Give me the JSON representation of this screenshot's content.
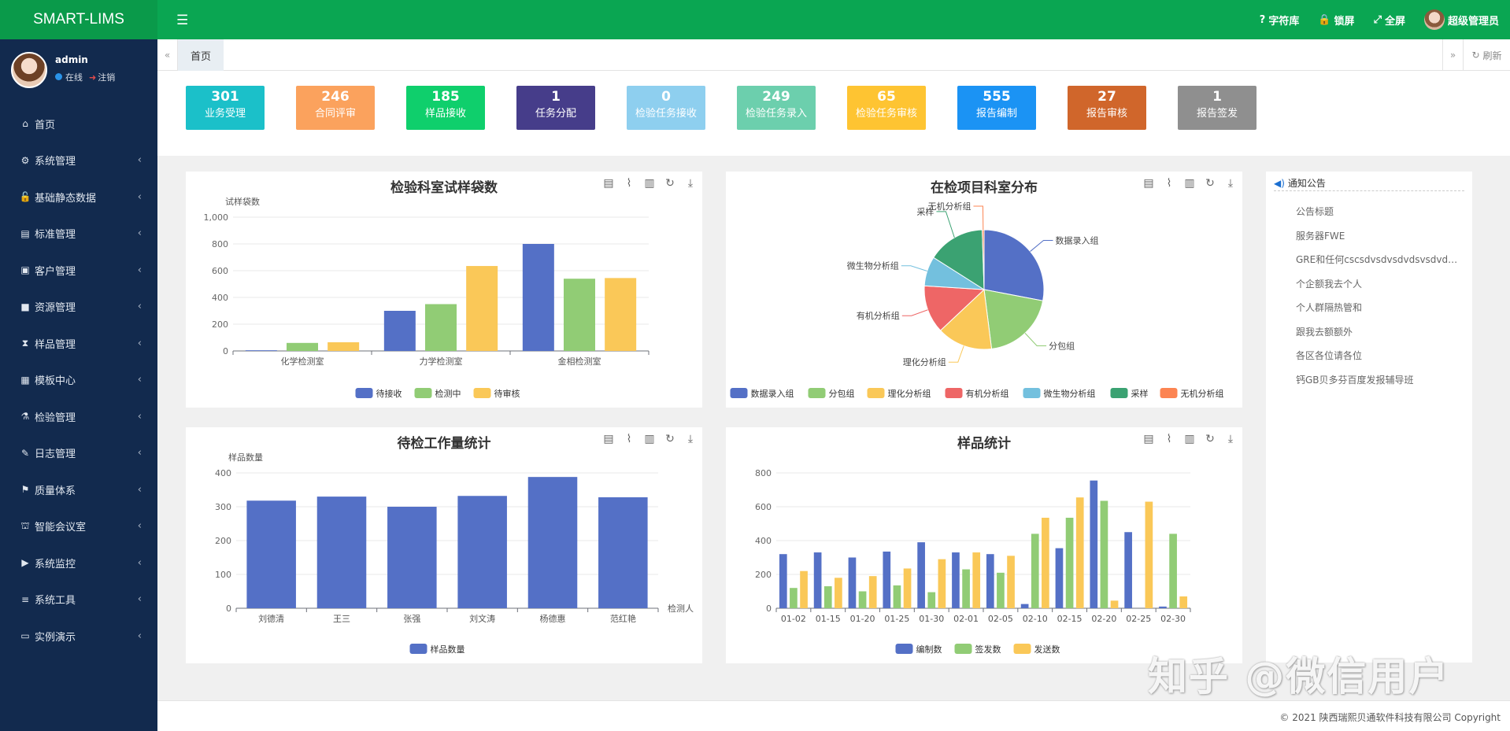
{
  "app": {
    "brand": "SMART-LIMS",
    "menu_icon": "hamburger-icon",
    "top_actions": [
      {
        "icon": "?",
        "label": "字符库"
      },
      {
        "icon": "🔒",
        "label": "锁屏"
      },
      {
        "icon": "⤢",
        "label": "全屏"
      }
    ],
    "top_user": "超级管理员"
  },
  "sidebar": {
    "username": "admin",
    "online": "在线",
    "logout": "注销",
    "items": [
      {
        "icon": "⌂",
        "label": "首页",
        "chevron": ""
      },
      {
        "icon": "⚙",
        "label": "系统管理",
        "chevron": "‹"
      },
      {
        "icon": "🔓",
        "label": "基础静态数据",
        "chevron": "‹"
      },
      {
        "icon": "▤",
        "label": "标准管理",
        "chevron": "‹"
      },
      {
        "icon": "▣",
        "label": "客户管理",
        "chevron": "‹"
      },
      {
        "icon": "■",
        "label": "资源管理",
        "chevron": "‹"
      },
      {
        "icon": "⧗",
        "label": "样品管理",
        "chevron": "‹"
      },
      {
        "icon": "▦",
        "label": "模板中心",
        "chevron": "‹"
      },
      {
        "icon": "⚗",
        "label": "检验管理",
        "chevron": "‹"
      },
      {
        "icon": "✎",
        "label": "日志管理",
        "chevron": "‹"
      },
      {
        "icon": "⚑",
        "label": "质量体系",
        "chevron": "‹"
      },
      {
        "icon": "⛫",
        "label": "智能会议室",
        "chevron": "‹"
      },
      {
        "icon": "▶",
        "label": "系统监控",
        "chevron": "‹"
      },
      {
        "icon": "≡",
        "label": "系统工具",
        "chevron": "‹"
      },
      {
        "icon": "▭",
        "label": "实例演示",
        "chevron": "‹"
      }
    ]
  },
  "tabs": {
    "prev": "«",
    "home": "首页",
    "next": "»",
    "refresh": "刷新"
  },
  "stats": [
    {
      "num": "301",
      "label": "业务受理",
      "color": "#1bc0c9"
    },
    {
      "num": "246",
      "label": "合同评审",
      "color": "#fba25d"
    },
    {
      "num": "185",
      "label": "样品接收",
      "color": "#0fcf6c"
    },
    {
      "num": "1",
      "label": "任务分配",
      "color": "#463d8a"
    },
    {
      "num": "0",
      "label": "检验任务接收",
      "color": "#8ecfef"
    },
    {
      "num": "249",
      "label": "检验任务录入",
      "color": "#6ccfad"
    },
    {
      "num": "65",
      "label": "检验任务审核",
      "color": "#fec432"
    },
    {
      "num": "555",
      "label": "报告编制",
      "color": "#1b93f4"
    },
    {
      "num": "27",
      "label": "报告审核",
      "color": "#d0662b"
    },
    {
      "num": "1",
      "label": "报告签发",
      "color": "#8f8f8f"
    }
  ],
  "toolbox": [
    "▤",
    "⌇",
    "▥",
    "↻",
    "⤓"
  ],
  "colors": [
    "#5470c6",
    "#91cc75",
    "#fac858",
    "#ee6666",
    "#73c0de",
    "#3ba272",
    "#fc8452"
  ],
  "chart_data": [
    {
      "type": "bar",
      "title": "检验科室试样袋数",
      "ylabel": "试样袋数",
      "xlabel": "",
      "ylim": [
        0,
        1000
      ],
      "yticks": [
        "0",
        "200",
        "400",
        "600",
        "800",
        "1,000"
      ],
      "categories": [
        "化学检测室",
        "力学检测室",
        "金相检测室"
      ],
      "series": [
        {
          "name": "待接收",
          "values": [
            5,
            300,
            800
          ]
        },
        {
          "name": "检测中",
          "values": [
            60,
            350,
            540
          ]
        },
        {
          "name": "待审核",
          "values": [
            65,
            635,
            545
          ]
        }
      ],
      "legend": "bottom"
    },
    {
      "type": "pie",
      "title": "在检项目科室分布",
      "slices": [
        {
          "name": "数据录入组",
          "value": 28
        },
        {
          "name": "分包组",
          "value": 20
        },
        {
          "name": "理化分析组",
          "value": 15
        },
        {
          "name": "有机分析组",
          "value": 13
        },
        {
          "name": "微生物分析组",
          "value": 8
        },
        {
          "name": "采样",
          "value": 15.5
        },
        {
          "name": "无机分析组",
          "value": 0.5
        }
      ],
      "legend": "bottom"
    },
    {
      "type": "bar",
      "title": "待检工作量统计",
      "ylabel": "样品数量",
      "xlabel": "检测人",
      "ylim": [
        0,
        400
      ],
      "yticks": [
        "0",
        "100",
        "200",
        "300",
        "400"
      ],
      "categories": [
        "刘德清",
        "王三",
        "张强",
        "刘文涛",
        "杨德惠",
        "范红艳"
      ],
      "series": [
        {
          "name": "样品数量",
          "values": [
            318,
            330,
            300,
            332,
            388,
            328
          ]
        }
      ],
      "legend": "bottom"
    },
    {
      "type": "bar",
      "title": "样品统计",
      "ylabel": "",
      "xlabel": "",
      "ylim": [
        0,
        800
      ],
      "yticks": [
        "0",
        "200",
        "400",
        "600",
        "800"
      ],
      "categories": [
        "01-02",
        "01-15",
        "01-20",
        "01-25",
        "01-30",
        "02-01",
        "02-05",
        "02-10",
        "02-15",
        "02-20",
        "02-25",
        "02-30"
      ],
      "series": [
        {
          "name": "编制数",
          "values": [
            320,
            330,
            300,
            335,
            390,
            330,
            320,
            25,
            355,
            755,
            450,
            10
          ]
        },
        {
          "name": "签发数",
          "values": [
            120,
            130,
            100,
            135,
            95,
            230,
            210,
            440,
            535,
            635,
            0,
            440
          ]
        },
        {
          "name": "发送数",
          "values": [
            220,
            180,
            190,
            235,
            290,
            330,
            310,
            535,
            655,
            45,
            630,
            70
          ]
        }
      ],
      "legend": "bottom"
    }
  ],
  "notices": {
    "title": "通知公告",
    "items": [
      "公告标题",
      "服务器FWE",
      "GRE和任何cscsdvsdvsdvdsvsdvdsvdsv",
      "个企额我去个人",
      "个人群隔热管和",
      "跟我去额额外",
      "各区各位请各位",
      "钙GB贝多芬百度发报辅导班"
    ]
  },
  "footer": "© 2021 陕西瑞熙贝通软件科技有限公司 Copyright",
  "watermark": "知乎 @微信用户"
}
